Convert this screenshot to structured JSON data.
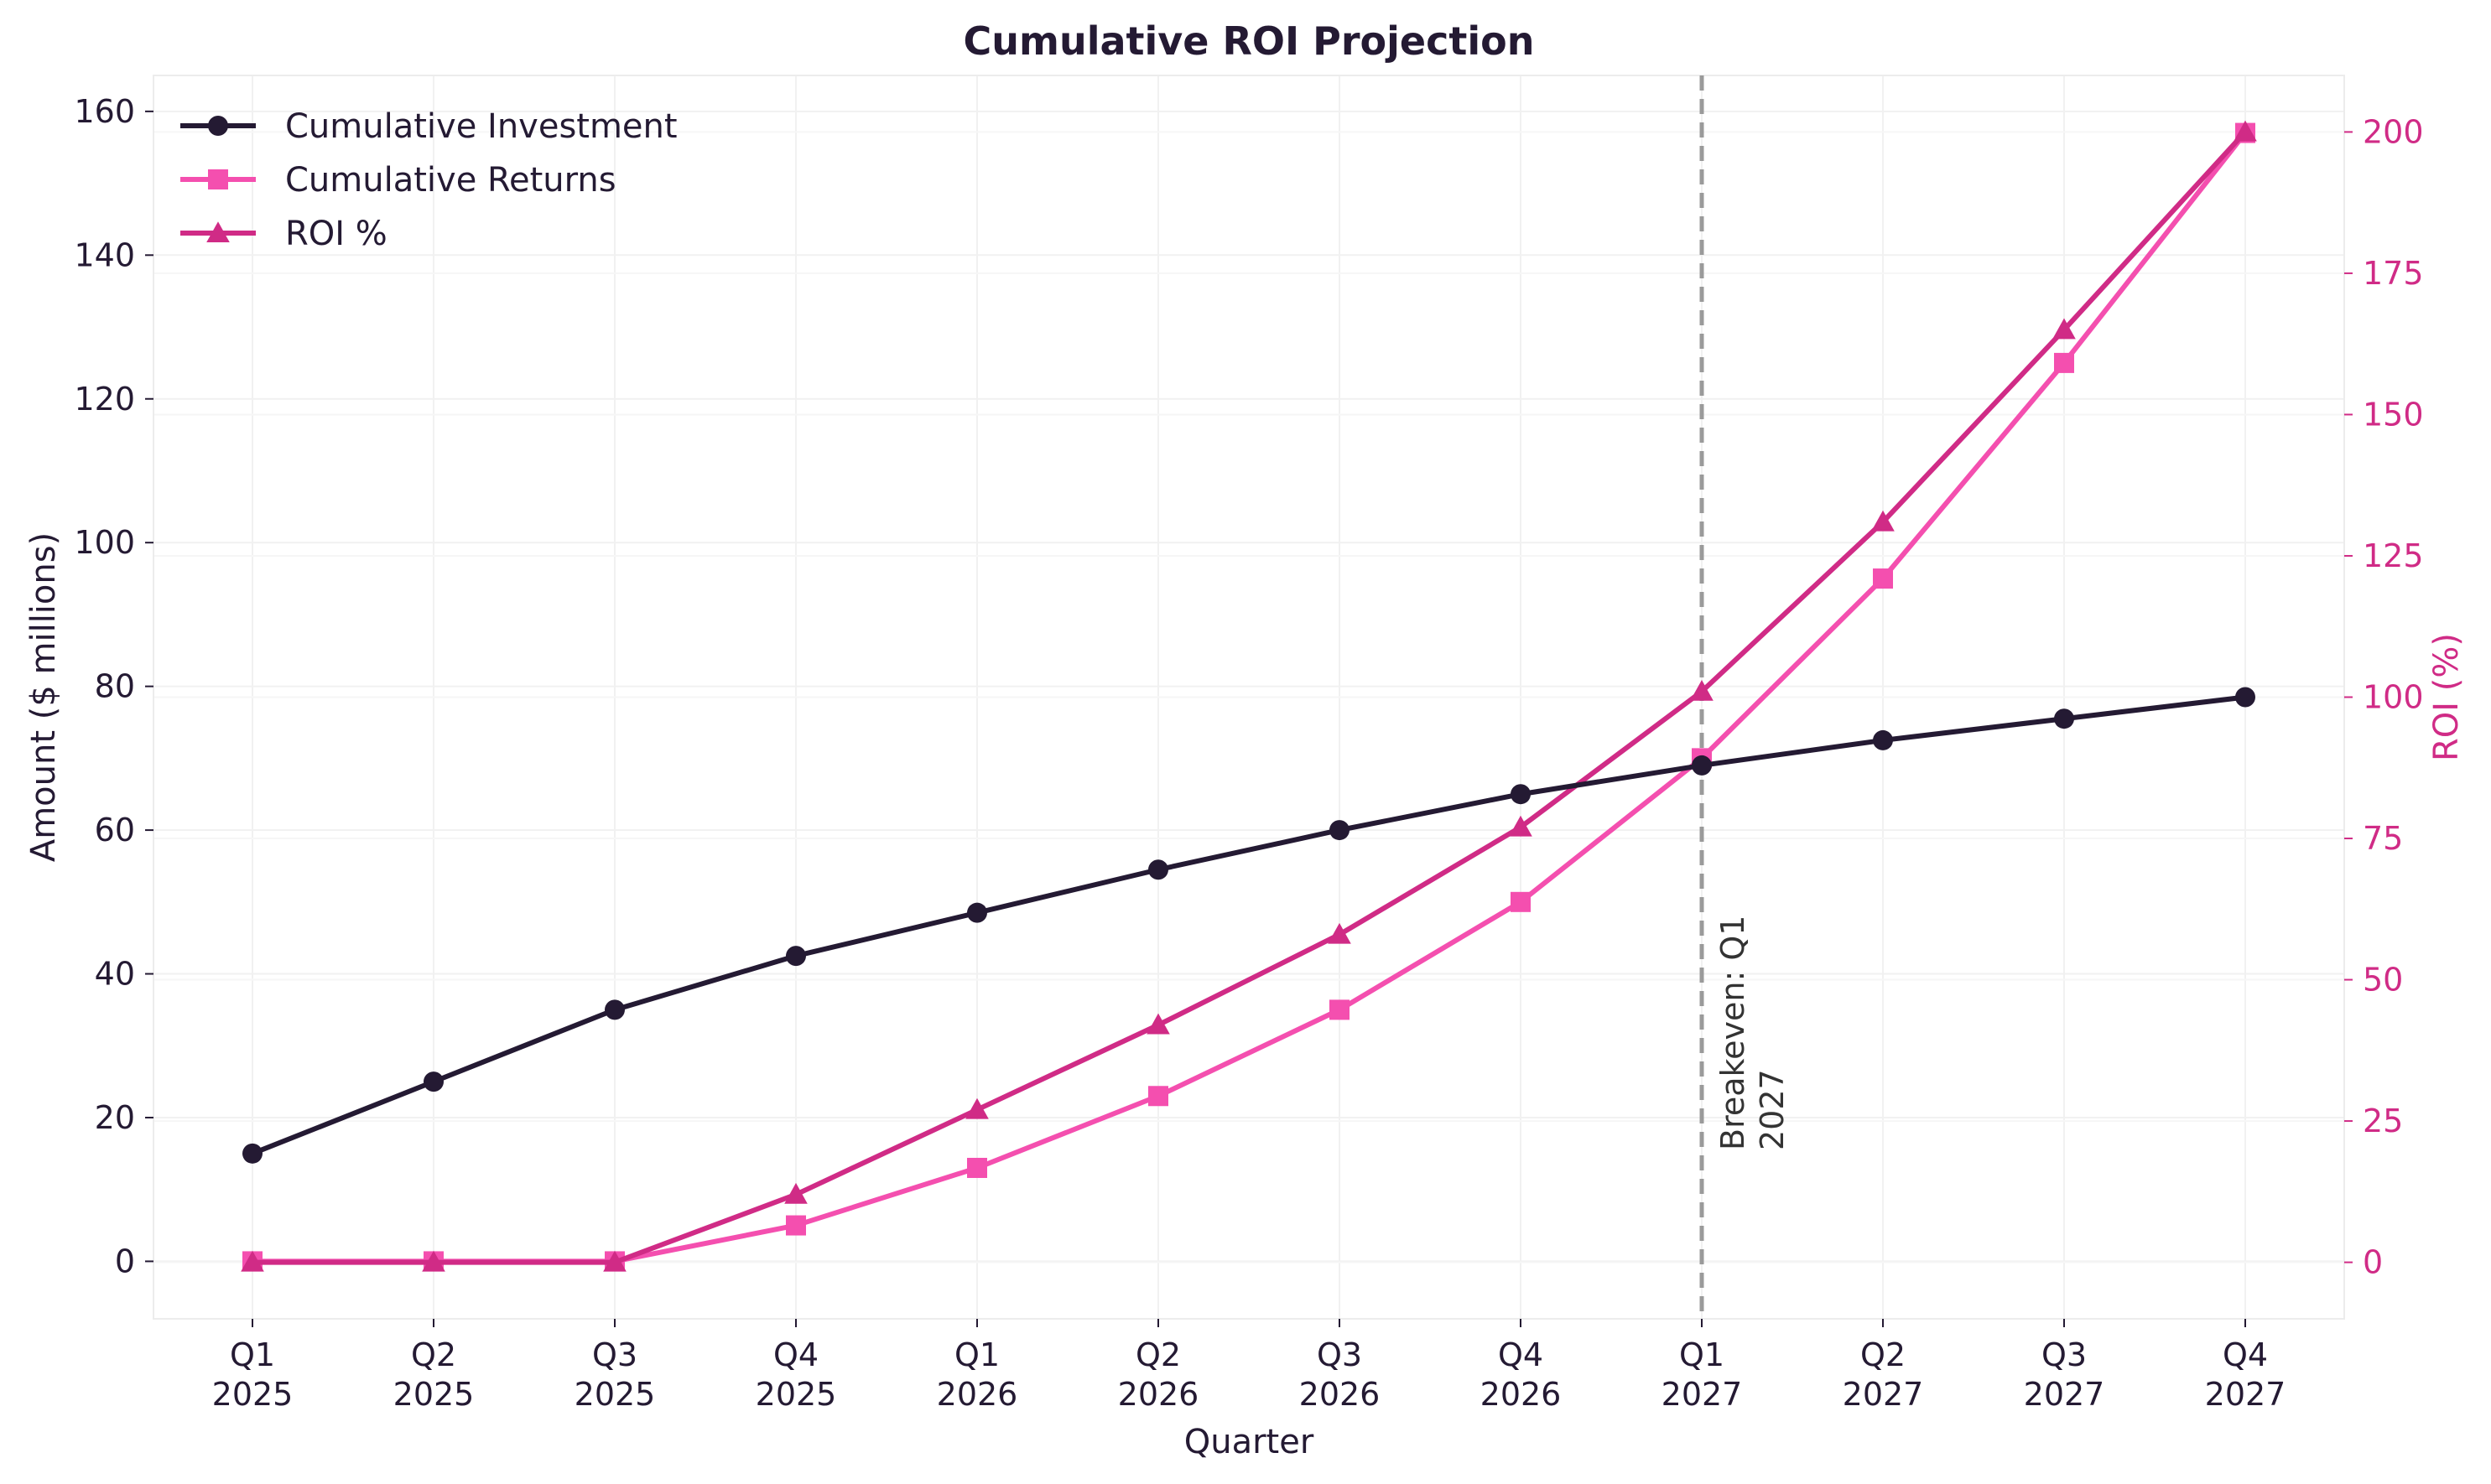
{
  "chart_data": {
    "type": "line",
    "title": "Cumulative ROI Projection",
    "xlabel": "Quarter",
    "ylabel": "Amount ($ millions)",
    "y2label": "ROI (%)",
    "categories": [
      [
        "Q1",
        "2025"
      ],
      [
        "Q2",
        "2025"
      ],
      [
        "Q3",
        "2025"
      ],
      [
        "Q4",
        "2025"
      ],
      [
        "Q1",
        "2026"
      ],
      [
        "Q2",
        "2026"
      ],
      [
        "Q3",
        "2026"
      ],
      [
        "Q4",
        "2026"
      ],
      [
        "Q1",
        "2027"
      ],
      [
        "Q2",
        "2027"
      ],
      [
        "Q3",
        "2027"
      ],
      [
        "Q4",
        "2027"
      ]
    ],
    "ylim": [
      -8,
      165
    ],
    "y2lim": [
      -10,
      210
    ],
    "yticks": [
      0,
      20,
      40,
      60,
      80,
      100,
      120,
      140,
      160
    ],
    "y2ticks": [
      0,
      25,
      50,
      75,
      100,
      125,
      150,
      175,
      200
    ],
    "grid": true,
    "legend_position": "top-left",
    "series": [
      {
        "name": "Cumulative Investment",
        "axis": "left",
        "color": "#241a33",
        "marker": "circle",
        "values": [
          15,
          25,
          35,
          42.5,
          48.5,
          54.5,
          60,
          65,
          69,
          72.5,
          75.5,
          78.5
        ]
      },
      {
        "name": "Cumulative Returns",
        "axis": "left",
        "color": "#f44faf",
        "marker": "square",
        "values": [
          0,
          0,
          0,
          5,
          13,
          23,
          35,
          50,
          70,
          95,
          125,
          157
        ]
      },
      {
        "name": "ROI %",
        "axis": "right",
        "color": "#d02b86",
        "marker": "triangle",
        "values": [
          0,
          0,
          0,
          12,
          27,
          42,
          58,
          77,
          101,
          131,
          165,
          200
        ]
      }
    ],
    "annotation": {
      "text": "Breakeven: Q1 2027",
      "lines": [
        "Breakeven: Q1",
        "2027"
      ],
      "category_index": 8,
      "line_color": "#9a9a9a"
    }
  }
}
